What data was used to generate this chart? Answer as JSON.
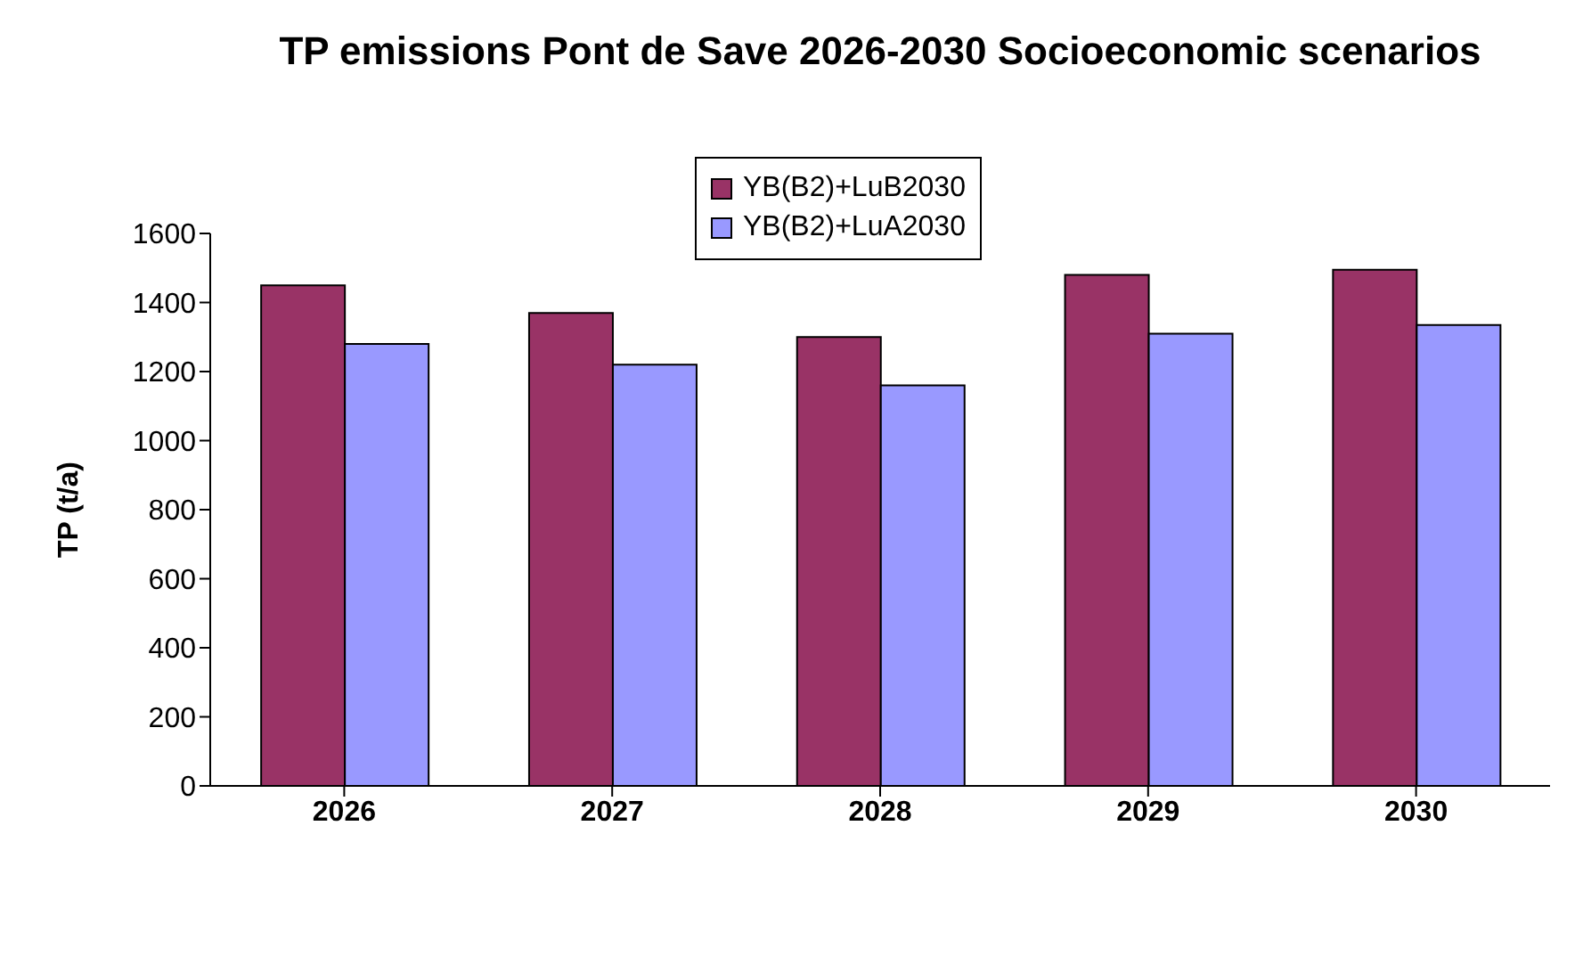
{
  "chart_data": {
    "type": "bar",
    "title": "TP emissions Pont de Save 2026-2030 Socioeconomic scenarios",
    "ylabel": "TP (t/a)",
    "categories": [
      "2026",
      "2027",
      "2028",
      "2029",
      "2030"
    ],
    "series": [
      {
        "name": "YB(B2)+LuB2030",
        "color": "#993366",
        "values": [
          1450,
          1370,
          1300,
          1480,
          1495
        ]
      },
      {
        "name": "YB(B2)+LuA2030",
        "color": "#9999ff",
        "values": [
          1280,
          1220,
          1160,
          1310,
          1335
        ]
      }
    ],
    "ylim": [
      0,
      1600
    ],
    "yticks": [
      0,
      200,
      400,
      600,
      800,
      1000,
      1200,
      1400,
      1600
    ],
    "grid": false,
    "legend": "top"
  }
}
